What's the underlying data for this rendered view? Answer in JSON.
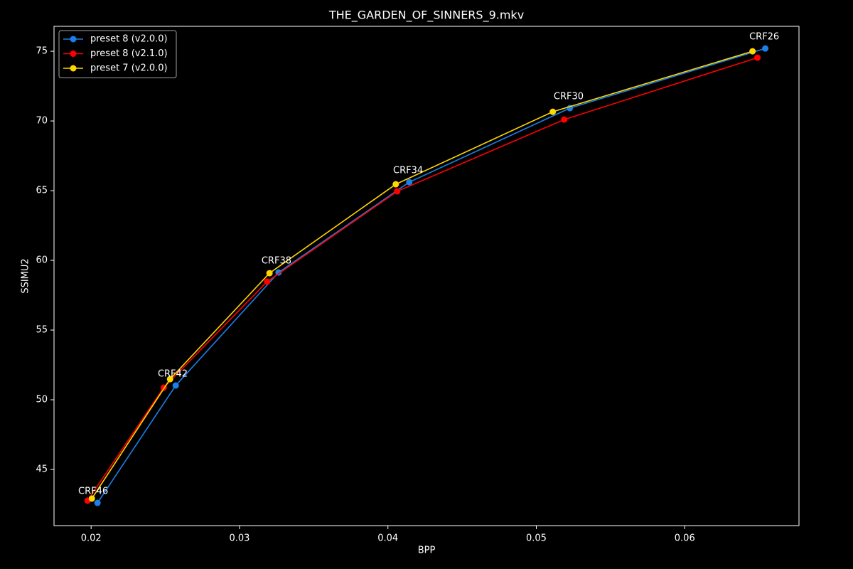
{
  "chart_data": {
    "type": "line",
    "title": "THE_GARDEN_OF_SINNERS_9.mkv",
    "xlabel": "BPP",
    "ylabel": "SSIMU2",
    "xlim": [
      0.0175,
      0.0677
    ],
    "ylim": [
      40.97,
      76.79
    ],
    "xticks": [
      0.02,
      0.03,
      0.04,
      0.05,
      0.06
    ],
    "yticks": [
      45,
      50,
      55,
      60,
      65,
      70,
      75
    ],
    "grid": false,
    "legend": "upper left",
    "series": [
      {
        "name": "preset 8 (v2.0.0)",
        "color": "#1a7fe8",
        "x": [
          0.02043,
          0.0257,
          0.03263,
          0.04144,
          0.05226,
          0.06543
        ],
        "values": [
          42.6,
          51.02,
          59.13,
          65.61,
          70.92,
          75.2
        ]
      },
      {
        "name": "preset 8 (v2.1.0)",
        "color": "#ff0000",
        "x": [
          0.01976,
          0.02489,
          0.03186,
          0.04062,
          0.05188,
          0.0649
        ],
        "values": [
          42.76,
          50.87,
          58.47,
          64.95,
          70.1,
          74.54
        ]
      },
      {
        "name": "preset 7 (v2.0.0)",
        "color": "#ffd700",
        "x": [
          0.02005,
          0.02532,
          0.03202,
          0.04053,
          0.05111,
          0.06457
        ],
        "values": [
          42.91,
          51.48,
          59.08,
          65.46,
          70.66,
          75.0
        ]
      }
    ],
    "annotations": [
      {
        "text": "CRF46",
        "x": 0.02014,
        "y": 42.65
      },
      {
        "text": "CRF42",
        "x": 0.0255,
        "y": 51.07
      },
      {
        "text": "CRF38",
        "x": 0.03249,
        "y": 59.18
      },
      {
        "text": "CRF34",
        "x": 0.04136,
        "y": 65.66
      },
      {
        "text": "CRF30",
        "x": 0.05218,
        "y": 70.97
      },
      {
        "text": "CRF26",
        "x": 0.06536,
        "y": 75.26
      }
    ]
  }
}
